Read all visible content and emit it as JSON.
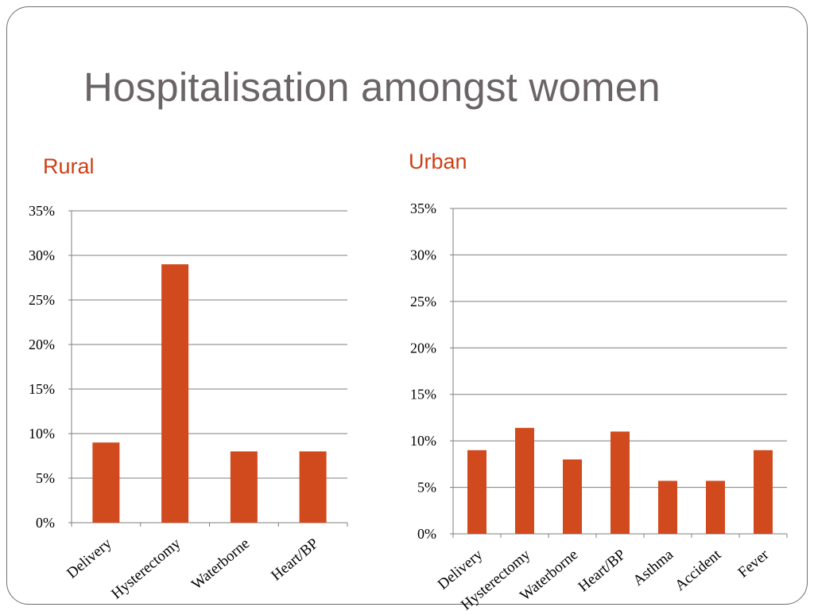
{
  "slide": {
    "title": "Hospitalisation amongst women"
  },
  "colors": {
    "bar": "#d14a1e",
    "title": "#6b6466",
    "panel_label": "#cf3f15",
    "grid": "#7f7f7f"
  },
  "chart_data": [
    {
      "type": "bar",
      "title": "Rural",
      "categories": [
        "Delivery",
        "Hysterectomy",
        "Waterborne",
        "Heart/BP"
      ],
      "values": [
        9,
        29,
        8,
        8
      ],
      "ylim": [
        0,
        35
      ],
      "yticks": [
        "0%",
        "5%",
        "10%",
        "15%",
        "20%",
        "25%",
        "30%",
        "35%"
      ],
      "grid": true,
      "legend": "none"
    },
    {
      "type": "bar",
      "title": "Urban",
      "categories": [
        "Delivery",
        "Hysterectomy",
        "Waterborne",
        "Heart/BP",
        "Asthma",
        "Accident",
        "Fever"
      ],
      "values": [
        9,
        11.4,
        8,
        11,
        5.7,
        5.7,
        9
      ],
      "ylim": [
        0,
        35
      ],
      "yticks": [
        "0%",
        "5%",
        "10%",
        "15%",
        "20%",
        "25%",
        "30%",
        "35%"
      ],
      "grid": true,
      "legend": "none"
    }
  ]
}
